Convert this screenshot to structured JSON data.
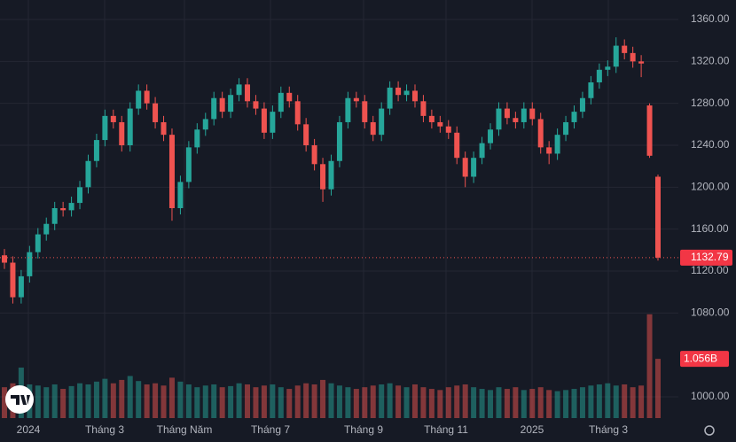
{
  "chart_data": {
    "type": "candlestick",
    "ohlc": [
      [
        1135,
        1141,
        1122,
        1128
      ],
      [
        1128,
        1134,
        1089,
        1095
      ],
      [
        1095,
        1121,
        1089,
        1115
      ],
      [
        1115,
        1144,
        1109,
        1138
      ],
      [
        1138,
        1161,
        1132,
        1155
      ],
      [
        1155,
        1171,
        1149,
        1165
      ],
      [
        1165,
        1186,
        1159,
        1180
      ],
      [
        1180,
        1186,
        1172,
        1178
      ],
      [
        1178,
        1191,
        1172,
        1185
      ],
      [
        1185,
        1206,
        1179,
        1200
      ],
      [
        1200,
        1231,
        1194,
        1225
      ],
      [
        1225,
        1251,
        1219,
        1245
      ],
      [
        1245,
        1274,
        1239,
        1268
      ],
      [
        1268,
        1274,
        1256,
        1262
      ],
      [
        1262,
        1268,
        1234,
        1240
      ],
      [
        1240,
        1281,
        1234,
        1275
      ],
      [
        1275,
        1298,
        1269,
        1292
      ],
      [
        1292,
        1298,
        1274,
        1280
      ],
      [
        1280,
        1286,
        1256,
        1262
      ],
      [
        1262,
        1268,
        1244,
        1250
      ],
      [
        1250,
        1256,
        1168,
        1180
      ],
      [
        1180,
        1211,
        1174,
        1205
      ],
      [
        1205,
        1244,
        1199,
        1238
      ],
      [
        1238,
        1261,
        1232,
        1255
      ],
      [
        1255,
        1271,
        1249,
        1265
      ],
      [
        1265,
        1291,
        1259,
        1285
      ],
      [
        1285,
        1291,
        1266,
        1272
      ],
      [
        1272,
        1294,
        1266,
        1288
      ],
      [
        1288,
        1304,
        1282,
        1298
      ],
      [
        1298,
        1304,
        1276,
        1282
      ],
      [
        1282,
        1288,
        1269,
        1275
      ],
      [
        1275,
        1281,
        1246,
        1252
      ],
      [
        1252,
        1278,
        1246,
        1272
      ],
      [
        1272,
        1296,
        1266,
        1290
      ],
      [
        1290,
        1296,
        1276,
        1282
      ],
      [
        1282,
        1288,
        1254,
        1260
      ],
      [
        1260,
        1266,
        1234,
        1240
      ],
      [
        1240,
        1246,
        1216,
        1222
      ],
      [
        1222,
        1228,
        1186,
        1198
      ],
      [
        1198,
        1231,
        1192,
        1225
      ],
      [
        1225,
        1268,
        1219,
        1262
      ],
      [
        1262,
        1291,
        1256,
        1285
      ],
      [
        1285,
        1291,
        1276,
        1282
      ],
      [
        1282,
        1288,
        1256,
        1262
      ],
      [
        1262,
        1268,
        1244,
        1250
      ],
      [
        1250,
        1281,
        1244,
        1275
      ],
      [
        1275,
        1301,
        1269,
        1295
      ],
      [
        1295,
        1301,
        1282,
        1288
      ],
      [
        1288,
        1298,
        1282,
        1292
      ],
      [
        1292,
        1298,
        1276,
        1282
      ],
      [
        1282,
        1288,
        1262,
        1268
      ],
      [
        1268,
        1274,
        1256,
        1262
      ],
      [
        1262,
        1268,
        1252,
        1258
      ],
      [
        1258,
        1264,
        1246,
        1252
      ],
      [
        1252,
        1258,
        1222,
        1228
      ],
      [
        1228,
        1234,
        1200,
        1210
      ],
      [
        1210,
        1234,
        1204,
        1228
      ],
      [
        1228,
        1248,
        1222,
        1242
      ],
      [
        1242,
        1261,
        1236,
        1255
      ],
      [
        1255,
        1281,
        1249,
        1275
      ],
      [
        1275,
        1281,
        1260,
        1266
      ],
      [
        1266,
        1272,
        1256,
        1262
      ],
      [
        1262,
        1281,
        1256,
        1275
      ],
      [
        1275,
        1281,
        1259,
        1265
      ],
      [
        1265,
        1271,
        1232,
        1238
      ],
      [
        1238,
        1244,
        1222,
        1232
      ],
      [
        1232,
        1256,
        1226,
        1250
      ],
      [
        1250,
        1268,
        1244,
        1262
      ],
      [
        1262,
        1278,
        1256,
        1272
      ],
      [
        1272,
        1291,
        1266,
        1285
      ],
      [
        1285,
        1306,
        1279,
        1300
      ],
      [
        1300,
        1318,
        1294,
        1312
      ],
      [
        1312,
        1321,
        1306,
        1315
      ],
      [
        1315,
        1343,
        1309,
        1335
      ],
      [
        1335,
        1341,
        1322,
        1328
      ],
      [
        1328,
        1334,
        1314,
        1320
      ],
      [
        1320,
        1326,
        1305,
        1318
      ],
      [
        1278,
        1280,
        1228,
        1230
      ],
      [
        1210,
        1212,
        1130,
        1132.79
      ]
    ],
    "volume": [
      0.55,
      0.62,
      0.9,
      0.6,
      0.58,
      0.55,
      0.6,
      0.52,
      0.57,
      0.62,
      0.6,
      0.65,
      0.7,
      0.62,
      0.68,
      0.75,
      0.66,
      0.6,
      0.62,
      0.58,
      0.72,
      0.65,
      0.6,
      0.55,
      0.58,
      0.6,
      0.55,
      0.57,
      0.62,
      0.6,
      0.55,
      0.58,
      0.6,
      0.55,
      0.52,
      0.58,
      0.62,
      0.6,
      0.68,
      0.62,
      0.58,
      0.55,
      0.52,
      0.55,
      0.58,
      0.6,
      0.62,
      0.58,
      0.55,
      0.6,
      0.55,
      0.52,
      0.5,
      0.55,
      0.58,
      0.6,
      0.55,
      0.52,
      0.5,
      0.55,
      0.52,
      0.55,
      0.5,
      0.52,
      0.55,
      0.5,
      0.48,
      0.5,
      0.52,
      0.55,
      0.58,
      0.6,
      0.62,
      0.58,
      0.6,
      0.55,
      0.58,
      1.85,
      1.056
    ],
    "up_color": "#26a69a",
    "down_color": "#ef5350",
    "ylim": [
      979.7,
      1378.6
    ],
    "yticks": [
      {
        "value": 1000,
        "label": "1000.00"
      },
      {
        "value": 1080,
        "label": "1080.00"
      },
      {
        "value": 1120,
        "label": "1120.00"
      },
      {
        "value": 1160,
        "label": "1160.00"
      },
      {
        "value": 1200,
        "label": "1200.00"
      },
      {
        "value": 1240,
        "label": "1240.00"
      },
      {
        "value": 1280,
        "label": "1280.00"
      },
      {
        "value": 1320,
        "label": "1320.00"
      },
      {
        "value": 1360,
        "label": "1360.00"
      }
    ],
    "volume_ylim": [
      0,
      7.45
    ],
    "last_price": 1132.79,
    "last_volume": {
      "value": 1.056,
      "label": "1.056B"
    },
    "x_labels": [
      "2024",
      "Tháng 3",
      "Tháng Năm",
      "Tháng 7",
      "Tháng 9",
      "Tháng 11",
      "2025",
      "Tháng 3"
    ],
    "grid": true
  }
}
